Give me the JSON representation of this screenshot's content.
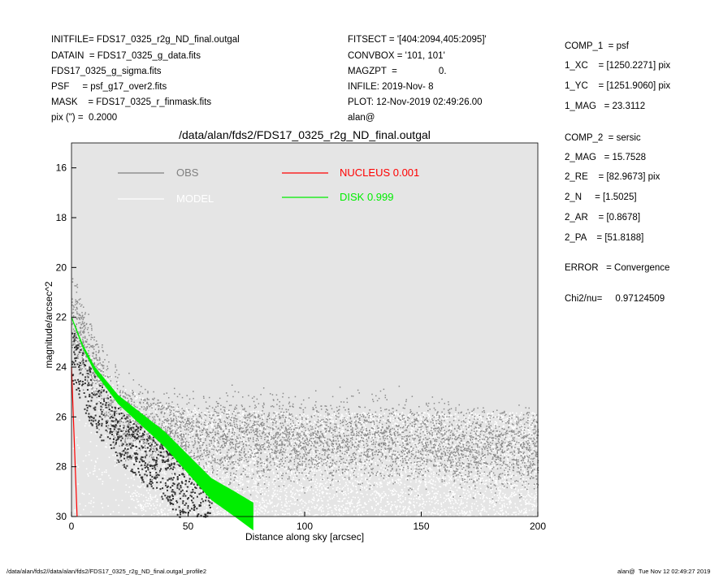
{
  "header_left": [
    "INITFILE= FDS17_0325_r2g_ND_final.outgal",
    "DATAIN  = FDS17_0325_g_data.fits",
    "FDS17_0325_g_sigma.fits",
    "PSF     = psf_g17_over2.fits",
    "MASK    = FDS17_0325_r_finmask.fits",
    "pix (\") =  0.2000"
  ],
  "header_mid": [
    "FITSECT = '[404:2094,405:2095]'",
    "CONVBOX = '101, 101'",
    "MAGZPT  =                0.",
    "INFILE: 2019-Nov- 8",
    "PLOT: 12-Nov-2019 02:49:26.00",
    "alan@"
  ],
  "params": [
    "COMP_1  = psf",
    "1_XC    = [1250.2271] pix",
    "1_YC    = [1251.9060] pix",
    "1_MAG   = 23.3112",
    "COMP_2  = sersic",
    "2_MAG   = 15.7528",
    "2_RE    = [82.9673] pix",
    "2_N     = [1.5025]",
    "2_AR    = [0.8678]",
    "2_PA    = [51.8188]",
    "ERROR   = Convergence",
    "Chi2/nu=     0.97124509"
  ],
  "footer": {
    "left": "/data/alan/fds2//data/alan/fds2/FDS17_0325_r2g_ND_final.outgal_profile2",
    "right": "alan@  Tue Nov 12 02:49:27 2019"
  },
  "chart_data": {
    "type": "scatter",
    "title": "/data/alan/fds2/FDS17_0325_r2g_ND_final.outgal",
    "xlabel": "Distance along sky [arcsec]",
    "ylabel": "magnitude/arcsec^2",
    "xlim": [
      0,
      200
    ],
    "ylim": [
      30,
      15
    ],
    "y_inverted": true,
    "xticks": [
      0,
      50,
      100,
      150,
      200
    ],
    "yticks": [
      16,
      18,
      20,
      22,
      24,
      26,
      28,
      30
    ],
    "background": "#e5e5e5",
    "legend": [
      {
        "label": "OBS",
        "color": "#808080"
      },
      {
        "label": "MODEL",
        "color": "#ffffff"
      },
      {
        "label": "NUCLEUS  0.001",
        "color": "#ff0000"
      },
      {
        "label": "DISK  0.999",
        "color": "#00ee00"
      }
    ],
    "series": [
      {
        "name": "NUCLEUS",
        "type": "line",
        "color": "#ff0000",
        "x": [
          0,
          2.4
        ],
        "y": [
          24,
          30
        ]
      },
      {
        "name": "DISK",
        "type": "band",
        "color": "#00ee00",
        "x": [
          0,
          5,
          10,
          20,
          30,
          40,
          50,
          60,
          70,
          78
        ],
        "y": [
          22.0,
          23.2,
          24.1,
          25.3,
          26.1,
          26.9,
          27.9,
          28.9,
          29.5,
          30.0
        ]
      },
      {
        "name": "MODEL",
        "type": "scatter",
        "color": "#ffffff",
        "upper_envelope_x": [
          0,
          5,
          10,
          20,
          30,
          40,
          60,
          100,
          150,
          200
        ],
        "upper_envelope_y": [
          22.0,
          22.9,
          23.7,
          24.6,
          25.2,
          25.5,
          25.7,
          25.8,
          25.8,
          25.8
        ]
      },
      {
        "name": "OBS",
        "type": "scatter",
        "color": "#808080",
        "center_x": [
          0,
          20,
          50,
          100,
          150,
          170,
          200
        ],
        "center_y": [
          22.0,
          26.0,
          26.9,
          27.0,
          27.0,
          27.3,
          27.3
        ]
      }
    ]
  }
}
